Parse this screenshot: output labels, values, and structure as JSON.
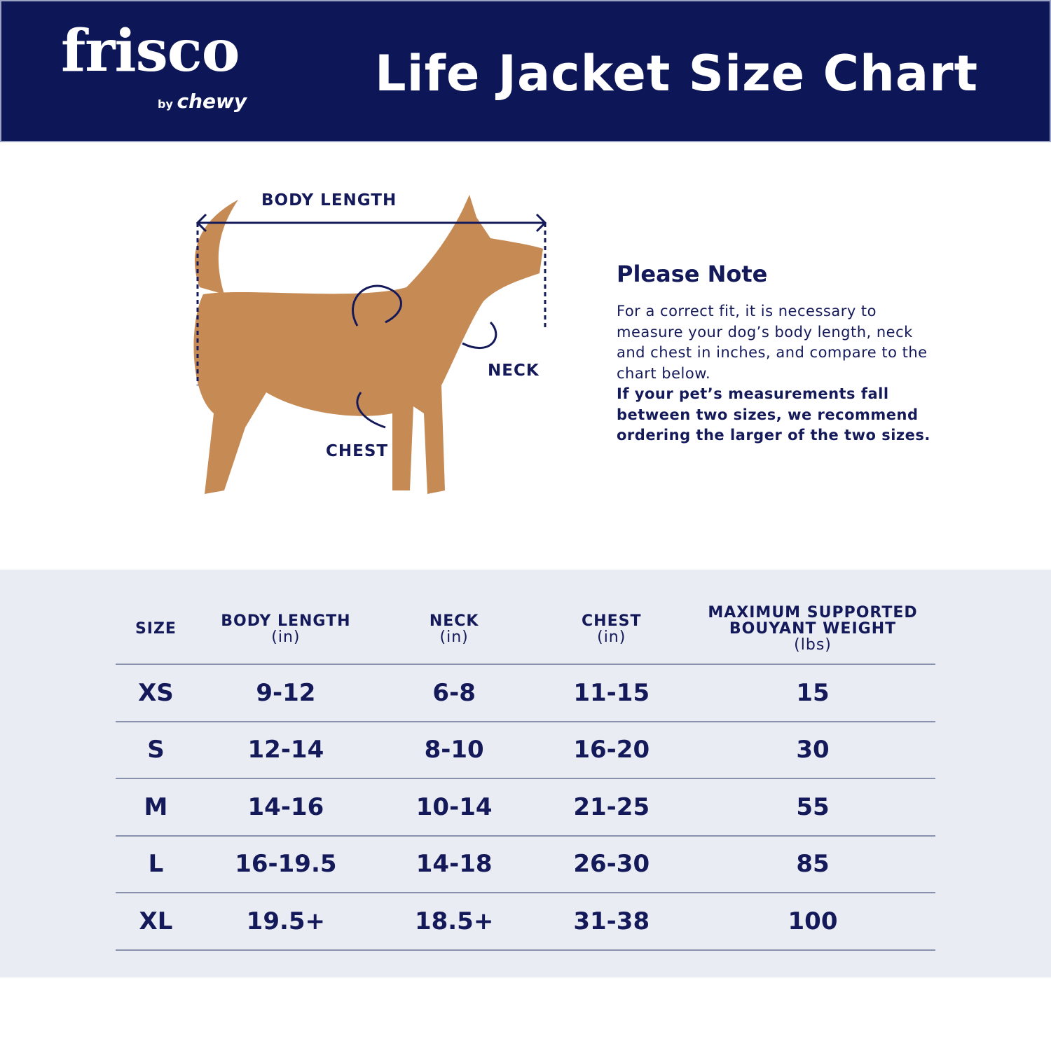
{
  "brand": {
    "name": "frisco",
    "sub_by": "by",
    "sub_name": "chewy"
  },
  "title": "Life Jacket Size Chart",
  "diagram": {
    "body_length": "BODY LENGTH",
    "neck": "NECK",
    "chest": "CHEST"
  },
  "note": {
    "heading": "Please Note",
    "text": "For a correct fit, it is necessary to measure your dog’s body length, neck and chest in inches, and compare to the chart below.",
    "bold_text": "If your pet’s measurements fall between two sizes, we recommend ordering the larger of the two sizes."
  },
  "colors": {
    "navy": "#0d1757",
    "table_bg": "#e9ecf3",
    "dog": "#c68a55"
  },
  "table": {
    "headers": [
      {
        "label": "SIZE",
        "unit": ""
      },
      {
        "label": "BODY LENGTH",
        "unit": "(in)"
      },
      {
        "label": "NECK",
        "unit": "(in)"
      },
      {
        "label": "CHEST",
        "unit": "(in)"
      },
      {
        "label": "MAXIMUM SUPPORTED BOUYANT WEIGHT",
        "unit": "(lbs)"
      }
    ],
    "rows": [
      [
        "XS",
        "9-12",
        "6-8",
        "11-15",
        "15"
      ],
      [
        "S",
        "12-14",
        "8-10",
        "16-20",
        "30"
      ],
      [
        "M",
        "14-16",
        "10-14",
        "21-25",
        "55"
      ],
      [
        "L",
        "16-19.5",
        "14-18",
        "26-30",
        "85"
      ],
      [
        "XL",
        "19.5+",
        "18.5+",
        "31-38",
        "100"
      ]
    ]
  }
}
